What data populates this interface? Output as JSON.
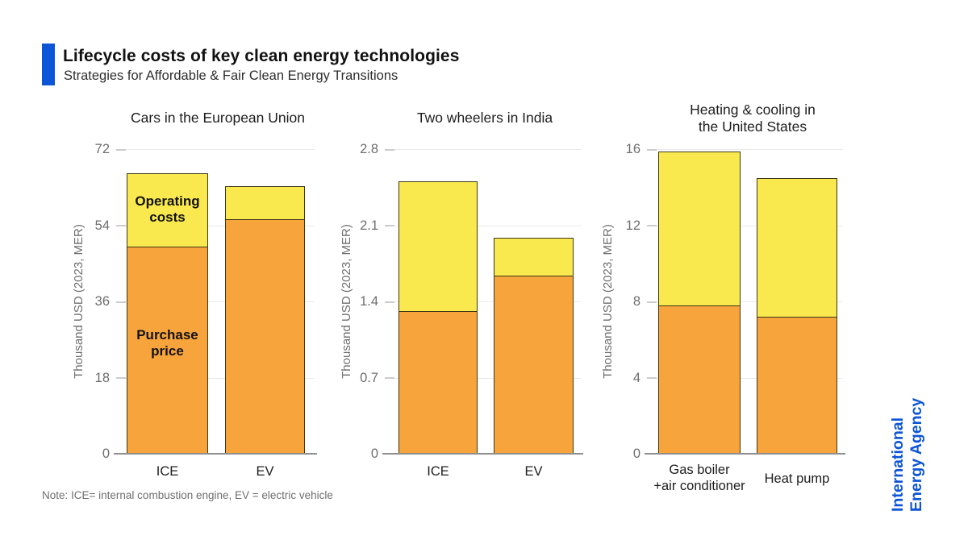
{
  "header": {
    "title": "Lifecycle costs of key clean energy technologies",
    "subtitle": "Strategies for Affordable & Fair Clean Energy Transitions",
    "accent_color": "#0C55D6"
  },
  "note": "Note: ICE= internal combustion engine, EV = electric vehicle",
  "logo": {
    "line1": "International",
    "line2": "Energy Agency",
    "color": "#0C55D6"
  },
  "colors": {
    "purchase_fill": "#F8A43C",
    "operating_fill": "#F9E94F",
    "bar_border": "#3C3714",
    "gridline": "#E9E9E9",
    "axis_line": "#8F8F8F",
    "tick_text": "#6E6E6E",
    "title_text": "#1D1D1D"
  },
  "chart_data": [
    {
      "type": "bar",
      "stacked": true,
      "title": "Cars in the European Union",
      "title_lines": [
        "Cars in the European Union"
      ],
      "ylabel": "Thousand USD (2023, MER)",
      "ylim": [
        0,
        72
      ],
      "yticks": [
        {
          "value": 0,
          "label": "0"
        },
        {
          "value": 18,
          "label": "18"
        },
        {
          "value": 36,
          "label": "36"
        },
        {
          "value": 54,
          "label": "54"
        },
        {
          "value": 72,
          "label": "72"
        }
      ],
      "categories": [
        [
          "ICE"
        ],
        [
          "EV"
        ]
      ],
      "series": [
        {
          "name": "Purchase price",
          "values": [
            49,
            55.5
          ]
        },
        {
          "name": "Operating costs",
          "values": [
            17.5,
            8
          ]
        }
      ],
      "segment_labels": [
        {
          "bar": 0,
          "segment": 1,
          "lines": [
            "Operating",
            "costs"
          ]
        },
        {
          "bar": 0,
          "segment": 0,
          "lines": [
            "Purchase",
            "price"
          ]
        }
      ]
    },
    {
      "type": "bar",
      "stacked": true,
      "title": "Two wheelers in India",
      "title_lines": [
        "Two wheelers in India"
      ],
      "ylabel": "Thousand USD (2023, MER)",
      "ylim": [
        0,
        2.8
      ],
      "yticks": [
        {
          "value": 0,
          "label": "0"
        },
        {
          "value": 0.7,
          "label": "0.7"
        },
        {
          "value": 1.4,
          "label": "1.4"
        },
        {
          "value": 2.1,
          "label": "2.1"
        },
        {
          "value": 2.8,
          "label": "2.8"
        }
      ],
      "categories": [
        [
          "ICE"
        ],
        [
          "EV"
        ]
      ],
      "series": [
        {
          "name": "Purchase price",
          "values": [
            1.31,
            1.64
          ]
        },
        {
          "name": "Operating costs",
          "values": [
            1.2,
            0.35
          ]
        }
      ],
      "segment_labels": []
    },
    {
      "type": "bar",
      "stacked": true,
      "title": "Heating & cooling in the United States",
      "title_lines": [
        "Heating & cooling in",
        "the United States"
      ],
      "ylabel": "Thousand USD (2023, MER)",
      "ylim": [
        0,
        16
      ],
      "yticks": [
        {
          "value": 0,
          "label": "0"
        },
        {
          "value": 4,
          "label": "4"
        },
        {
          "value": 8,
          "label": "8"
        },
        {
          "value": 12,
          "label": "12"
        },
        {
          "value": 16,
          "label": "16"
        }
      ],
      "categories": [
        [
          "Gas boiler",
          "+air conditioner"
        ],
        [
          "Heat pump"
        ]
      ],
      "series": [
        {
          "name": "Purchase price",
          "values": [
            7.8,
            7.2
          ]
        },
        {
          "name": "Operating costs",
          "values": [
            8.1,
            7.3
          ]
        }
      ],
      "segment_labels": []
    }
  ]
}
